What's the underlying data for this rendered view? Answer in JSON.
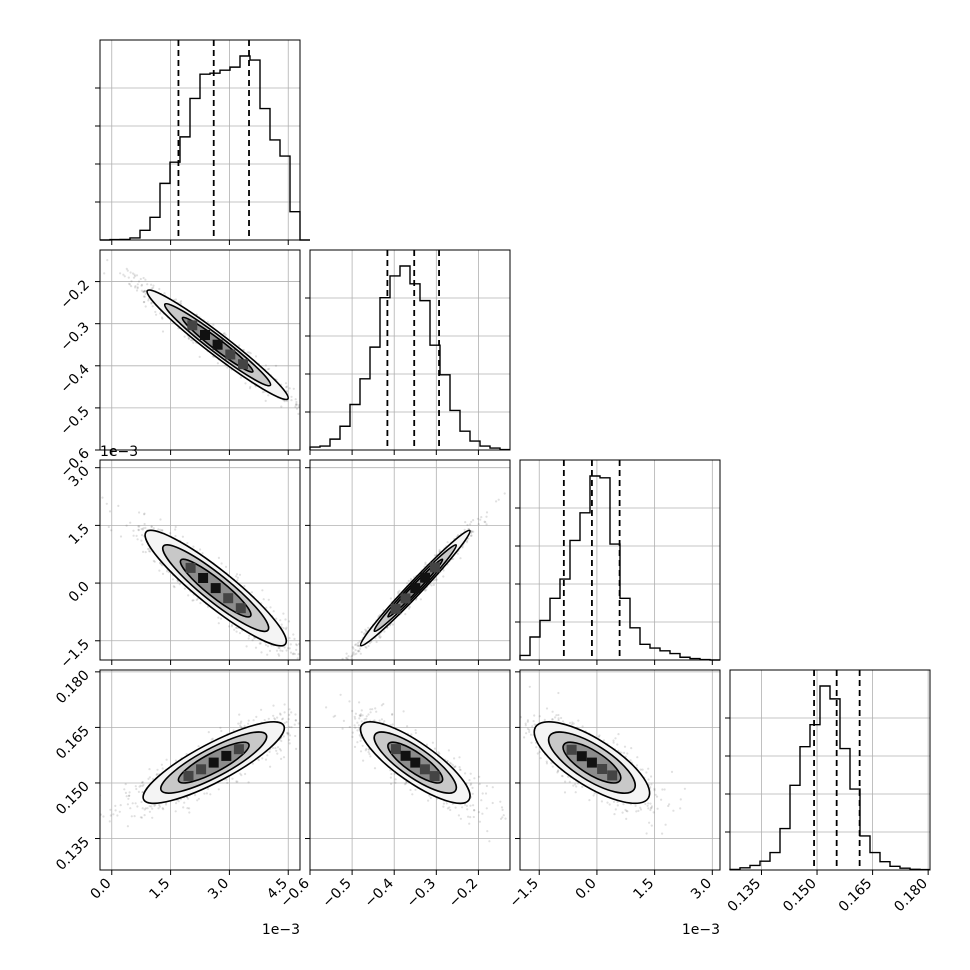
{
  "chart_data": {
    "type": "corner",
    "grid": true,
    "parameters": [
      {
        "range": [
          -0.3,
          4.8
        ],
        "ticks": [
          0.0,
          1.5,
          3.0,
          4.5
        ],
        "tick_labels": [
          "0.0",
          "1.5",
          "3.0",
          "4.5"
        ],
        "offset_label": "1e−3",
        "quantiles": [
          1.7,
          2.6,
          3.5
        ],
        "hist_edges_start": -0.3,
        "hist_bin_width": 0.255,
        "hist_counts": [
          0,
          2,
          3,
          10,
          48,
          112,
          280,
          385,
          510,
          700,
          820,
          825,
          840,
          855,
          910,
          890,
          650,
          495,
          415,
          140,
          0
        ]
      },
      {
        "range": [
          -0.6,
          -0.125
        ],
        "ticks": [
          -0.6,
          -0.5,
          -0.4,
          -0.3,
          -0.2
        ],
        "tick_labels": [
          "−0.6",
          "−0.5",
          "−0.4",
          "−0.3",
          "−0.2"
        ],
        "offset_label": "",
        "quantiles": [
          -0.4162,
          -0.3525,
          -0.2935
        ],
        "hist_edges_start": -0.6,
        "hist_bin_width": 0.02375,
        "hist_counts": [
          15,
          20,
          55,
          120,
          230,
          360,
          520,
          770,
          880,
          930,
          840,
          755,
          530,
          380,
          200,
          95,
          45,
          20,
          10,
          2
        ]
      },
      {
        "range": [
          -2.0,
          3.2
        ],
        "ticks": [
          -1.5,
          0.0,
          1.5,
          3.0
        ],
        "tick_labels": [
          "−1.5",
          "0.0",
          "1.5",
          "3.0"
        ],
        "offset_label": "1e−3",
        "quantiles": [
          -0.86,
          -0.13,
          0.59
        ],
        "hist_edges_start": -2.0,
        "hist_bin_width": 0.26,
        "hist_counts": [
          25,
          125,
          215,
          335,
          440,
          650,
          800,
          1000,
          990,
          630,
          335,
          175,
          85,
          65,
          50,
          35,
          15,
          8,
          2,
          0
        ]
      },
      {
        "range": [
          0.1265,
          0.1805
        ],
        "ticks": [
          0.135,
          0.15,
          0.165,
          0.18
        ],
        "tick_labels": [
          "0.135",
          "0.150",
          "0.165",
          "0.180"
        ],
        "offset_label": "",
        "quantiles": [
          0.1492,
          0.1553,
          0.1615
        ],
        "hist_edges_start": 0.1265,
        "hist_bin_width": 0.0027,
        "hist_counts": [
          3,
          12,
          25,
          48,
          95,
          225,
          460,
          670,
          790,
          1000,
          930,
          660,
          440,
          185,
          95,
          45,
          20,
          10,
          4,
          2
        ]
      }
    ],
    "pairs": [
      {
        "row": 1,
        "col": 0,
        "center": [
          2.7,
          -0.35
        ],
        "sx": 0.9,
        "sy": 0.065,
        "corr": -0.97
      },
      {
        "row": 2,
        "col": 0,
        "center": [
          2.65,
          -0.13
        ],
        "sx": 0.9,
        "sy": 0.75,
        "corr": -0.92
      },
      {
        "row": 2,
        "col": 1,
        "center": [
          -0.35,
          -0.13
        ],
        "sx": 0.065,
        "sy": 0.75,
        "corr": 0.985
      },
      {
        "row": 3,
        "col": 0,
        "center": [
          2.6,
          0.1555
        ],
        "sx": 0.9,
        "sy": 0.0055,
        "corr": 0.85
      },
      {
        "row": 3,
        "col": 1,
        "center": [
          -0.35,
          0.1555
        ],
        "sx": 0.065,
        "sy": 0.0055,
        "corr": -0.82
      },
      {
        "row": 3,
        "col": 2,
        "center": [
          -0.13,
          0.1555
        ],
        "sx": 0.75,
        "sy": 0.0055,
        "corr": -0.75
      }
    ]
  }
}
